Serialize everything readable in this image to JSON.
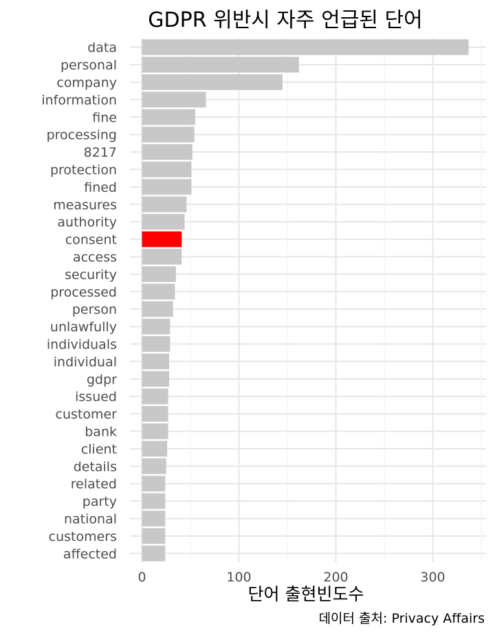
{
  "chart_data": {
    "type": "bar",
    "orientation": "horizontal",
    "title": "GDPR 위반시 자주 언급된 단어",
    "xlabel": "단어 출현빈도수",
    "ylabel": "",
    "caption": "데이터 출처: Privacy Affairs",
    "xlim": [
      0,
      350
    ],
    "xticks": [
      0,
      100,
      200,
      300
    ],
    "grid": true,
    "legend": "none",
    "bar_color": "#c8c8c8",
    "highlight_color": "#ff0000",
    "highlight_category": "consent",
    "categories": [
      "data",
      "personal",
      "company",
      "information",
      "fine",
      "processing",
      "8217",
      "protection",
      "fined",
      "measures",
      "authority",
      "consent",
      "access",
      "security",
      "processed",
      "person",
      "unlawfully",
      "individuals",
      "individual",
      "gdpr",
      "issued",
      "customer",
      "bank",
      "client",
      "details",
      "related",
      "party",
      "national",
      "customers",
      "affected"
    ],
    "values": [
      337,
      162,
      145,
      66,
      55,
      54,
      52,
      51,
      51,
      46,
      44,
      41,
      41,
      35,
      34,
      32,
      29,
      29,
      28,
      28,
      27,
      27,
      27,
      26,
      25,
      24,
      24,
      24,
      24,
      24
    ]
  }
}
